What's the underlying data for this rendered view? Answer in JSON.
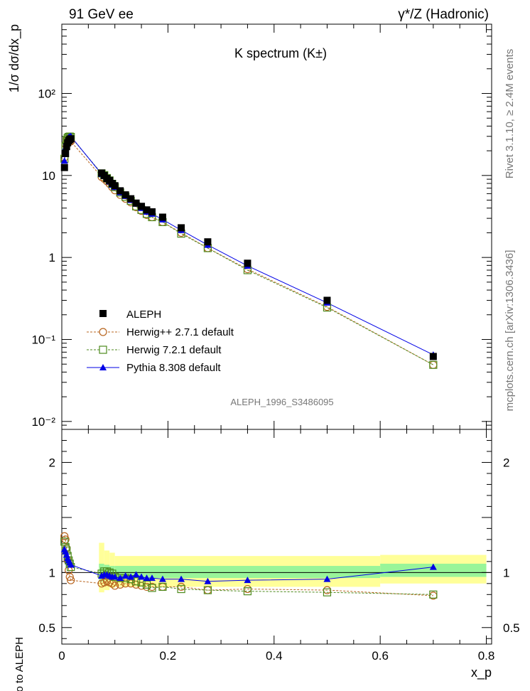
{
  "header": {
    "left_title": "91 GeV ee",
    "right_title": "γ*/Z (Hadronic)"
  },
  "chart_data": [
    {
      "type": "scatter",
      "title": "K spectrum  (K±)",
      "ylabel": "1/σ dσ/dx_p",
      "yscale": "log",
      "ylim": [
        0.008,
        700
      ],
      "xlim": [
        0,
        0.81
      ],
      "ytick_labels": [
        "10⁻²",
        "10⁻¹",
        "1",
        "10",
        "10²"
      ],
      "analysis_label": "ALEPH_1996_S3486095",
      "side_label_top": "Rivet 3.1.10, ≥ 2.4M events",
      "side_label_bottom": "mcplots.cern.ch [arXiv:1306.3436]",
      "legend_position": "bottom-left",
      "series": [
        {
          "name": "ALEPH",
          "color": "#000000",
          "marker": "filled-square",
          "x": [
            0.005,
            0.007,
            0.009,
            0.011,
            0.013,
            0.015,
            0.017,
            0.075,
            0.08,
            0.085,
            0.09,
            0.095,
            0.1,
            0.11,
            0.12,
            0.13,
            0.14,
            0.15,
            0.16,
            0.17,
            0.19,
            0.225,
            0.275,
            0.35,
            0.5,
            0.7
          ],
          "y": [
            12.5,
            18.5,
            22.5,
            25.0,
            26.5,
            27.5,
            28.0,
            10.7,
            10.0,
            9.2,
            8.7,
            8.0,
            7.5,
            6.5,
            5.8,
            5.2,
            4.6,
            4.2,
            3.8,
            3.6,
            3.1,
            2.3,
            1.55,
            0.85,
            0.3,
            0.062
          ]
        },
        {
          "name": "Herwig++ 2.7.1 default",
          "color": "#b8651f",
          "marker": "open-circle",
          "x": [
            0.005,
            0.007,
            0.009,
            0.011,
            0.013,
            0.015,
            0.017,
            0.075,
            0.08,
            0.085,
            0.09,
            0.095,
            0.1,
            0.11,
            0.12,
            0.13,
            0.14,
            0.15,
            0.16,
            0.17,
            0.19,
            0.225,
            0.275,
            0.35,
            0.5,
            0.7
          ],
          "y": [
            16.6,
            24.0,
            27.5,
            27.8,
            27.0,
            26.5,
            26.0,
            9.6,
            9.1,
            8.5,
            7.9,
            7.2,
            6.6,
            5.8,
            5.2,
            4.7,
            4.1,
            3.7,
            3.3,
            3.1,
            2.7,
            2.0,
            1.3,
            0.72,
            0.25,
            0.049
          ]
        },
        {
          "name": "Herwig 7.2.1 default",
          "color": "#4d8a1d",
          "marker": "open-square",
          "x": [
            0.005,
            0.007,
            0.009,
            0.011,
            0.013,
            0.015,
            0.017,
            0.075,
            0.08,
            0.085,
            0.09,
            0.095,
            0.1,
            0.11,
            0.12,
            0.13,
            0.14,
            0.15,
            0.16,
            0.17,
            0.19,
            0.225,
            0.275,
            0.35,
            0.5,
            0.7
          ],
          "y": [
            16.0,
            22.8,
            27.0,
            28.8,
            29.5,
            29.8,
            29.5,
            10.6,
            10.1,
            9.3,
            8.7,
            7.9,
            7.2,
            6.2,
            5.5,
            4.9,
            4.2,
            3.8,
            3.4,
            3.1,
            2.7,
            1.95,
            1.3,
            0.7,
            0.245,
            0.049
          ]
        },
        {
          "name": "Pythia 8.308 default",
          "color": "#0000e6",
          "marker": "filled-triangle",
          "x": [
            0.005,
            0.007,
            0.009,
            0.011,
            0.013,
            0.015,
            0.017,
            0.075,
            0.08,
            0.085,
            0.09,
            0.095,
            0.1,
            0.11,
            0.12,
            0.13,
            0.14,
            0.15,
            0.16,
            0.17,
            0.19,
            0.225,
            0.275,
            0.35,
            0.5,
            0.7
          ],
          "y": [
            15.1,
            22.0,
            25.5,
            28.0,
            29.3,
            29.8,
            30.0,
            10.4,
            9.8,
            9.0,
            8.4,
            7.7,
            7.2,
            6.2,
            5.6,
            5.0,
            4.5,
            4.0,
            3.6,
            3.4,
            2.9,
            2.15,
            1.42,
            0.79,
            0.28,
            0.065
          ]
        }
      ]
    },
    {
      "type": "scatter",
      "ylabel": "Ratio to ALEPH",
      "xlabel": "x_p",
      "ylim": [
        0.35,
        2.3
      ],
      "xlim": [
        0,
        0.81
      ],
      "ytick_labels": [
        "0.5",
        "1",
        "2"
      ],
      "xtick_labels": [
        "0",
        "0.2",
        "0.4",
        "0.6",
        "0.8"
      ],
      "band_colors": {
        "outer": "#ffff99",
        "inner": "#99f599"
      },
      "bands": [
        {
          "x0": 0.07,
          "x1": 0.08,
          "inner": [
            0.92,
            1.08
          ],
          "outer": [
            0.82,
            1.27
          ]
        },
        {
          "x0": 0.08,
          "x1": 0.09,
          "inner": [
            0.93,
            1.07
          ],
          "outer": [
            0.84,
            1.2
          ]
        },
        {
          "x0": 0.09,
          "x1": 0.1,
          "inner": [
            0.94,
            1.06
          ],
          "outer": [
            0.86,
            1.18
          ]
        },
        {
          "x0": 0.1,
          "x1": 0.6,
          "inner": [
            0.95,
            1.06
          ],
          "outer": [
            0.87,
            1.15
          ]
        },
        {
          "x0": 0.6,
          "x1": 0.8,
          "inner": [
            0.96,
            1.08
          ],
          "outer": [
            0.9,
            1.16
          ]
        }
      ],
      "series": [
        {
          "name": "Herwig++ 2.7.1 default",
          "x": [
            0.005,
            0.007,
            0.009,
            0.011,
            0.013,
            0.015,
            0.017,
            0.075,
            0.08,
            0.085,
            0.09,
            0.095,
            0.1,
            0.11,
            0.12,
            0.13,
            0.14,
            0.15,
            0.16,
            0.17,
            0.19,
            0.225,
            0.275,
            0.35,
            0.5,
            0.7
          ],
          "y": [
            1.33,
            1.3,
            1.22,
            1.11,
            1.02,
            0.96,
            0.93,
            0.9,
            0.91,
            0.92,
            0.91,
            0.9,
            0.88,
            0.89,
            0.9,
            0.9,
            0.89,
            0.88,
            0.87,
            0.87,
            0.87,
            0.87,
            0.84,
            0.85,
            0.84,
            0.79
          ]
        },
        {
          "name": "Herwig 7.2.1 default",
          "x": [
            0.005,
            0.007,
            0.009,
            0.011,
            0.013,
            0.015,
            0.017,
            0.075,
            0.08,
            0.085,
            0.09,
            0.095,
            0.1,
            0.11,
            0.12,
            0.13,
            0.14,
            0.15,
            0.16,
            0.17,
            0.19,
            0.225,
            0.275,
            0.35,
            0.5,
            0.7
          ],
          "y": [
            1.28,
            1.23,
            1.2,
            1.15,
            1.11,
            1.08,
            1.05,
            0.99,
            1.01,
            1.01,
            1.0,
            0.99,
            0.96,
            0.95,
            0.95,
            0.94,
            0.92,
            0.91,
            0.89,
            0.86,
            0.87,
            0.85,
            0.84,
            0.83,
            0.82,
            0.8
          ]
        },
        {
          "name": "Pythia 8.308 default",
          "x": [
            0.005,
            0.007,
            0.009,
            0.011,
            0.013,
            0.015,
            0.017,
            0.075,
            0.08,
            0.085,
            0.09,
            0.095,
            0.1,
            0.11,
            0.12,
            0.13,
            0.14,
            0.15,
            0.16,
            0.17,
            0.19,
            0.225,
            0.275,
            0.35,
            0.5,
            0.7
          ],
          "y": [
            1.21,
            1.19,
            1.16,
            1.13,
            1.11,
            1.09,
            1.07,
            0.97,
            0.98,
            0.98,
            0.97,
            0.96,
            0.96,
            0.95,
            0.97,
            0.96,
            0.98,
            0.96,
            0.95,
            0.95,
            0.94,
            0.94,
            0.92,
            0.93,
            0.94,
            1.05
          ]
        }
      ]
    }
  ]
}
